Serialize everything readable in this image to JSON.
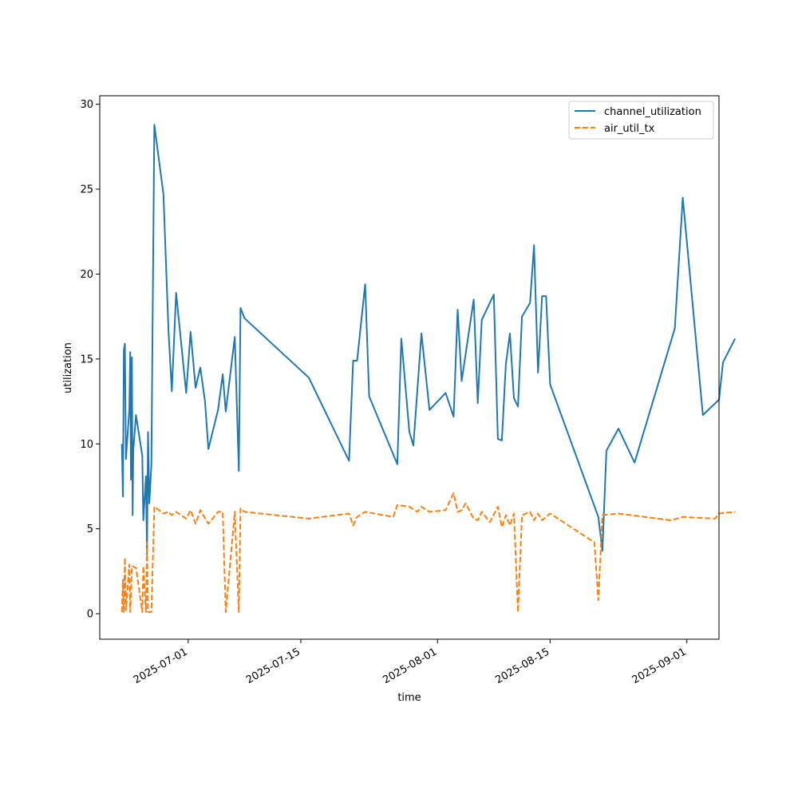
{
  "chart_data": {
    "type": "line",
    "title": "",
    "xlabel": "time",
    "ylabel": "utilization",
    "x_axis": {
      "kind": "date",
      "range": [
        "2025-06-20",
        "2025-09-05"
      ],
      "ticks": [
        "2025-07-01",
        "2025-07-15",
        "2025-08-01",
        "2025-08-15",
        "2025-09-01"
      ],
      "tick_labels": [
        "2025-07-01",
        "2025-07-15",
        "2025-08-01",
        "2025-08-15",
        "2025-09-01"
      ]
    },
    "y_axis": {
      "range": [
        -1.5,
        30.5
      ],
      "ticks": [
        0,
        5,
        10,
        15,
        20,
        25,
        30
      ],
      "tick_labels": [
        "0",
        "5",
        "10",
        "15",
        "20",
        "25",
        "30"
      ]
    },
    "grid": false,
    "legend": {
      "position": "top-right"
    },
    "series": [
      {
        "name": "channel_utilization",
        "color": "#1f77b4",
        "dash": "solid",
        "points": [
          [
            "2025-06-22T18:00",
            10.0
          ],
          [
            "2025-06-22T21:00",
            6.9
          ],
          [
            "2025-06-23T00:00",
            15.5
          ],
          [
            "2025-06-23T03:00",
            15.9
          ],
          [
            "2025-06-23T06:00",
            9.1
          ],
          [
            "2025-06-23T16:00",
            12.0
          ],
          [
            "2025-06-23T19:00",
            15.4
          ],
          [
            "2025-06-23T21:00",
            7.9
          ],
          [
            "2025-06-24T00:00",
            15.1
          ],
          [
            "2025-06-24T02:00",
            5.8
          ],
          [
            "2025-06-24T04:00",
            9.6
          ],
          [
            "2025-06-24T12:00",
            11.7
          ],
          [
            "2025-06-25T07:00",
            9.3
          ],
          [
            "2025-06-25T10:00",
            5.5
          ],
          [
            "2025-06-25T18:00",
            8.1
          ],
          [
            "2025-06-25T21:00",
            3.5
          ],
          [
            "2025-06-26T00:00",
            10.7
          ],
          [
            "2025-06-26T04:00",
            6.5
          ],
          [
            "2025-06-26T10:00",
            8.8
          ],
          [
            "2025-06-26T19:00",
            28.8
          ],
          [
            "2025-06-27T22:00",
            24.7
          ],
          [
            "2025-06-28T13:00",
            16.7
          ],
          [
            "2025-06-28T23:00",
            13.1
          ],
          [
            "2025-06-29T12:00",
            18.9
          ],
          [
            "2025-06-30T18:00",
            13.0
          ],
          [
            "2025-07-01T07:00",
            16.6
          ],
          [
            "2025-07-01T22:00",
            13.3
          ],
          [
            "2025-07-02T12:00",
            14.5
          ],
          [
            "2025-07-03T02:00",
            12.5
          ],
          [
            "2025-07-03T12:00",
            9.7
          ],
          [
            "2025-07-04T17:00",
            12.0
          ],
          [
            "2025-07-05T07:00",
            14.1
          ],
          [
            "2025-07-05T16:00",
            11.9
          ],
          [
            "2025-07-06T19:00",
            16.3
          ],
          [
            "2025-07-07T07:00",
            8.4
          ],
          [
            "2025-07-07T12:00",
            18.0
          ],
          [
            "2025-07-08T00:00",
            17.4
          ],
          [
            "2025-07-16T00:00",
            13.9
          ],
          [
            "2025-07-21T00:00",
            9.0
          ],
          [
            "2025-07-21T12:00",
            14.9
          ],
          [
            "2025-07-22T00:00",
            14.9
          ],
          [
            "2025-07-23T00:00",
            19.4
          ],
          [
            "2025-07-23T12:00",
            12.8
          ],
          [
            "2025-07-27T00:00",
            8.8
          ],
          [
            "2025-07-27T12:00",
            16.2
          ],
          [
            "2025-07-28T12:00",
            10.7
          ],
          [
            "2025-07-29T00:00",
            9.9
          ],
          [
            "2025-07-30T00:00",
            16.5
          ],
          [
            "2025-07-31T00:00",
            12.0
          ],
          [
            "2025-08-02T00:00",
            13.0
          ],
          [
            "2025-08-03T00:00",
            11.6
          ],
          [
            "2025-08-03T12:00",
            17.9
          ],
          [
            "2025-08-04T00:00",
            13.7
          ],
          [
            "2025-08-05T12:00",
            18.5
          ],
          [
            "2025-08-06T00:00",
            12.4
          ],
          [
            "2025-08-06T12:00",
            17.3
          ],
          [
            "2025-08-08T00:00",
            18.8
          ],
          [
            "2025-08-08T12:00",
            10.3
          ],
          [
            "2025-08-09T00:00",
            10.2
          ],
          [
            "2025-08-09T12:00",
            14.7
          ],
          [
            "2025-08-10T00:00",
            16.5
          ],
          [
            "2025-08-10T12:00",
            12.7
          ],
          [
            "2025-08-11T00:00",
            12.2
          ],
          [
            "2025-08-11T12:00",
            17.5
          ],
          [
            "2025-08-12T12:00",
            18.3
          ],
          [
            "2025-08-13T00:00",
            21.7
          ],
          [
            "2025-08-13T12:00",
            14.2
          ],
          [
            "2025-08-14T00:00",
            18.7
          ],
          [
            "2025-08-14T12:00",
            18.7
          ],
          [
            "2025-08-15T00:00",
            13.5
          ],
          [
            "2025-08-21T00:00",
            5.7
          ],
          [
            "2025-08-21T12:00",
            3.7
          ],
          [
            "2025-08-22T00:00",
            9.6
          ],
          [
            "2025-08-23T12:00",
            10.9
          ],
          [
            "2025-08-25T12:00",
            8.9
          ],
          [
            "2025-08-30T12:00",
            16.8
          ],
          [
            "2025-08-31T12:00",
            24.5
          ],
          [
            "2025-09-03T00:00",
            11.7
          ],
          [
            "2025-09-05T00:00",
            12.6
          ],
          [
            "2025-09-05T12:00",
            14.8
          ],
          [
            "2025-09-07T00:00",
            16.2
          ]
        ]
      },
      {
        "name": "air_util_tx",
        "color": "#ff7f0e",
        "dash": "dashed",
        "points": [
          [
            "2025-06-22T18:00",
            0.1
          ],
          [
            "2025-06-22T21:00",
            2.0
          ],
          [
            "2025-06-23T00:00",
            0.1
          ],
          [
            "2025-06-23T03:00",
            3.3
          ],
          [
            "2025-06-23T06:00",
            0.2
          ],
          [
            "2025-06-23T16:00",
            2.9
          ],
          [
            "2025-06-23T19:00",
            0.1
          ],
          [
            "2025-06-24T00:00",
            2.8
          ],
          [
            "2025-06-24T12:00",
            2.7
          ],
          [
            "2025-06-25T07:00",
            0.1
          ],
          [
            "2025-06-25T10:00",
            2.8
          ],
          [
            "2025-06-25T18:00",
            0.1
          ],
          [
            "2025-06-25T21:00",
            4.2
          ],
          [
            "2025-06-26T00:00",
            0.1
          ],
          [
            "2025-06-26T04:00",
            0.1
          ],
          [
            "2025-06-26T10:00",
            0.1
          ],
          [
            "2025-06-26T19:00",
            6.3
          ],
          [
            "2025-06-27T22:00",
            5.9
          ],
          [
            "2025-06-28T13:00",
            6.0
          ],
          [
            "2025-06-28T23:00",
            5.8
          ],
          [
            "2025-06-29T12:00",
            6.0
          ],
          [
            "2025-06-30T18:00",
            5.6
          ],
          [
            "2025-07-01T07:00",
            6.1
          ],
          [
            "2025-07-01T22:00",
            5.3
          ],
          [
            "2025-07-02T12:00",
            6.1
          ],
          [
            "2025-07-03T12:00",
            5.3
          ],
          [
            "2025-07-04T17:00",
            6.0
          ],
          [
            "2025-07-05T07:00",
            6.0
          ],
          [
            "2025-07-05T16:00",
            0.1
          ],
          [
            "2025-07-06T19:00",
            6.0
          ],
          [
            "2025-07-07T07:00",
            0.1
          ],
          [
            "2025-07-07T12:00",
            6.2
          ],
          [
            "2025-07-08T00:00",
            6.0
          ],
          [
            "2025-07-16T00:00",
            5.6
          ],
          [
            "2025-07-21T00:00",
            5.9
          ],
          [
            "2025-07-21T12:00",
            5.2
          ],
          [
            "2025-07-22T00:00",
            5.7
          ],
          [
            "2025-07-23T00:00",
            6.0
          ],
          [
            "2025-07-26T12:00",
            5.7
          ],
          [
            "2025-07-27T00:00",
            6.4
          ],
          [
            "2025-07-28T12:00",
            6.3
          ],
          [
            "2025-07-29T12:00",
            6.0
          ],
          [
            "2025-07-30T00:00",
            6.3
          ],
          [
            "2025-07-31T00:00",
            6.0
          ],
          [
            "2025-08-02T00:00",
            6.1
          ],
          [
            "2025-08-03T00:00",
            7.1
          ],
          [
            "2025-08-03T12:00",
            6.0
          ],
          [
            "2025-08-04T00:00",
            6.1
          ],
          [
            "2025-08-04T12:00",
            6.5
          ],
          [
            "2025-08-05T12:00",
            5.6
          ],
          [
            "2025-08-06T00:00",
            5.5
          ],
          [
            "2025-08-06T12:00",
            6.0
          ],
          [
            "2025-08-07T12:00",
            5.4
          ],
          [
            "2025-08-08T12:00",
            6.3
          ],
          [
            "2025-08-09T00:00",
            5.1
          ],
          [
            "2025-08-09T12:00",
            5.8
          ],
          [
            "2025-08-10T00:00",
            5.2
          ],
          [
            "2025-08-10T12:00",
            5.9
          ],
          [
            "2025-08-11T00:00",
            0.1
          ],
          [
            "2025-08-11T12:00",
            5.8
          ],
          [
            "2025-08-12T12:00",
            6.0
          ],
          [
            "2025-08-13T00:00",
            5.5
          ],
          [
            "2025-08-13T12:00",
            5.9
          ],
          [
            "2025-08-14T00:00",
            5.5
          ],
          [
            "2025-08-15T00:00",
            5.9
          ],
          [
            "2025-08-20T12:00",
            4.2
          ],
          [
            "2025-08-21T00:00",
            0.8
          ],
          [
            "2025-08-21T12:00",
            5.8
          ],
          [
            "2025-08-23T12:00",
            5.9
          ],
          [
            "2025-08-30T00:00",
            5.5
          ],
          [
            "2025-08-31T12:00",
            5.7
          ],
          [
            "2025-09-04T12:00",
            5.6
          ],
          [
            "2025-09-05T00:00",
            5.9
          ],
          [
            "2025-09-07T00:00",
            6.0
          ]
        ]
      }
    ]
  }
}
